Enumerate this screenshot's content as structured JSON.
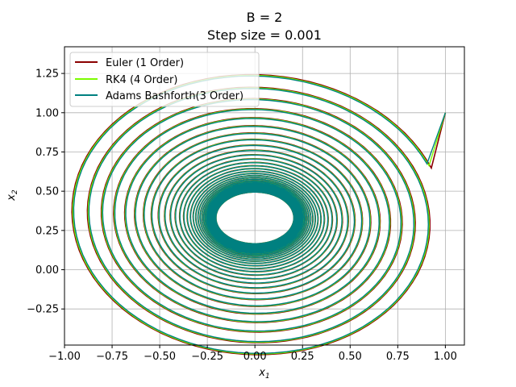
{
  "chart_data": {
    "type": "line",
    "title_line1": "B = 2",
    "title_line2": "Step size = 0.001",
    "xlabel": "x",
    "xlabel_sub": "1",
    "ylabel": "x",
    "ylabel_sub": "2",
    "xlim": [
      -1.0,
      1.1
    ],
    "ylim": [
      -0.48,
      1.42
    ],
    "xticks": [
      -1.0,
      -0.75,
      -0.5,
      -0.25,
      0.0,
      0.25,
      0.5,
      0.75,
      1.0
    ],
    "xtick_labels": [
      "−1.00",
      "−0.75",
      "−0.50",
      "−0.25",
      "0.00",
      "0.25",
      "0.50",
      "0.75",
      "1.00"
    ],
    "yticks": [
      -0.25,
      0.0,
      0.25,
      0.5,
      0.75,
      1.0,
      1.25
    ],
    "ytick_labels": [
      "−0.25",
      "0.00",
      "0.25",
      "0.50",
      "0.75",
      "1.00",
      "1.25"
    ],
    "grid": true,
    "legend_position": "top-left",
    "spiral_center": [
      0.0,
      0.33
    ],
    "spiral_start": [
      1.0,
      1.0
    ],
    "inner_hole_radius": [
      0.2,
      0.16
    ],
    "series": [
      {
        "name": "Euler (1 Order)",
        "color": "#8b0000"
      },
      {
        "name": "RK4 (4 Order)",
        "color": "#7cfc00"
      },
      {
        "name": "Adams Bashforth(3 Order)",
        "color": "#008080"
      }
    ]
  }
}
